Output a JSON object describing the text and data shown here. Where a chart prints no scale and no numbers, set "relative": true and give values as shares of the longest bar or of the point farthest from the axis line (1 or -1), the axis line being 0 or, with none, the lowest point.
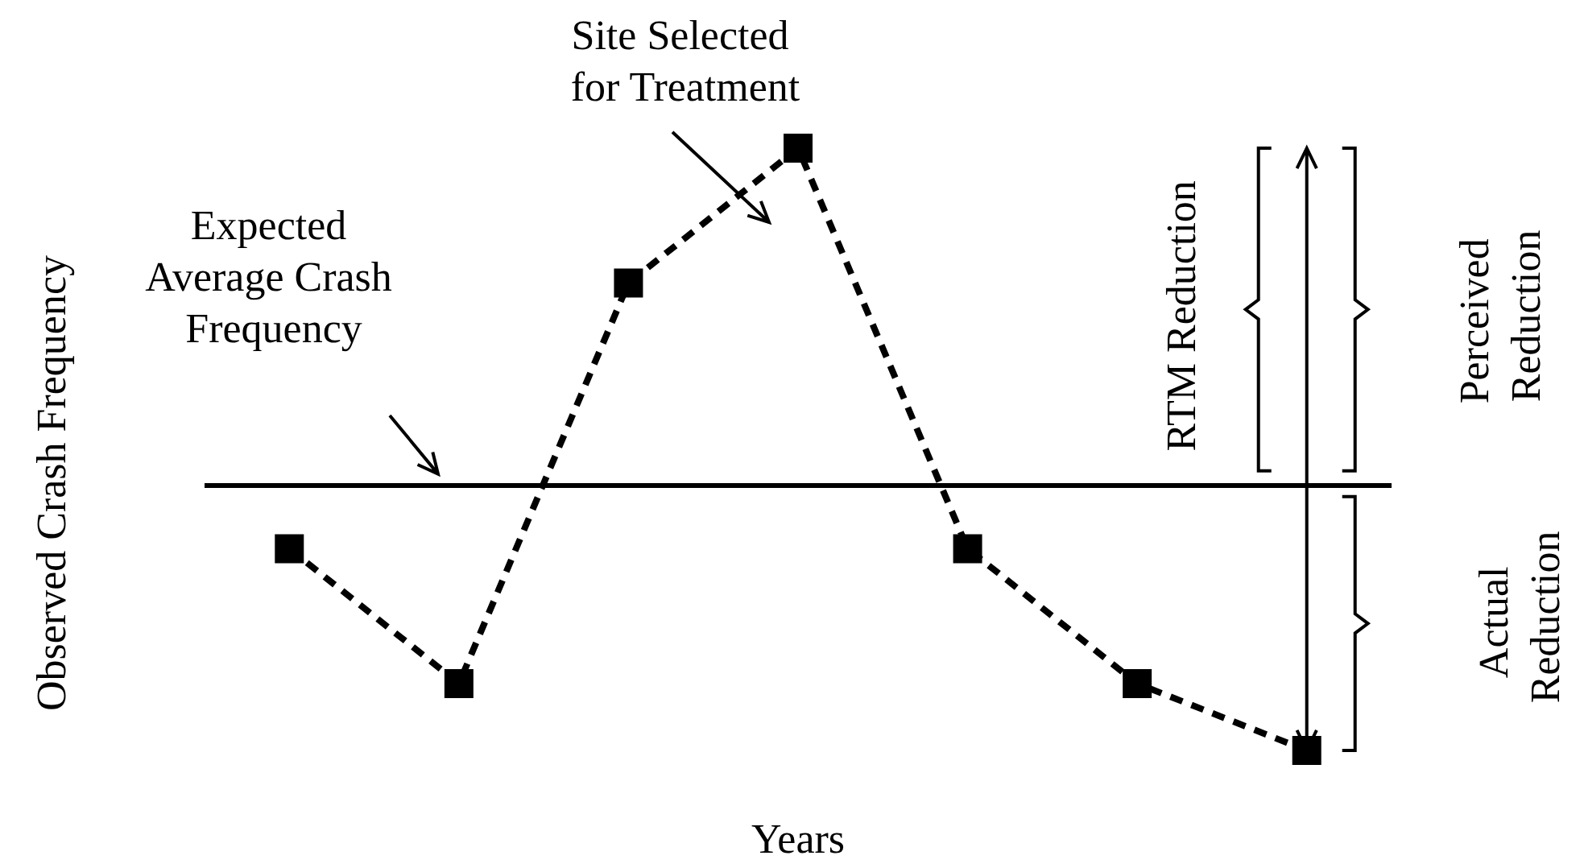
{
  "chart_data": {
    "type": "line",
    "relative": true,
    "xlabel": "Years",
    "ylabel": "Observed Crash Frequency",
    "categories": [
      null,
      null,
      null,
      null,
      null,
      null,
      null
    ],
    "series": [
      {
        "color": "#000000",
        "values": [
          0.335,
          0.111,
          0.776,
          1,
          0.335,
          0.111,
          0
        ]
      }
    ],
    "marker": "square",
    "line_style": "dashed",
    "grid": false,
    "ref_lines": [
      {
        "axis": "y",
        "value": 0.443,
        "label": "Expected Average Crash Frequency",
        "color": "#000000",
        "line_style": "solid"
      }
    ],
    "annotations": [
      "Site Selected for Treatment",
      "RTM Reduction",
      "Perceived Reduction",
      "Actual Reduction"
    ]
  }
}
